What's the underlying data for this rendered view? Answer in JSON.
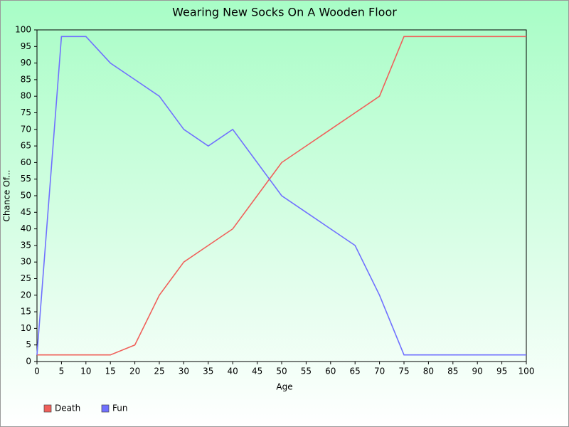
{
  "chart_data": {
    "type": "line",
    "title": "Wearing New Socks On A Wooden Floor",
    "xlabel": "Age",
    "ylabel": "Chance Of...",
    "x": [
      0,
      5,
      10,
      15,
      20,
      25,
      30,
      35,
      40,
      45,
      50,
      55,
      60,
      65,
      70,
      75,
      80,
      85,
      90,
      95,
      100
    ],
    "series": [
      {
        "name": "Death",
        "color": "#f0605a",
        "values": [
          2,
          2,
          2,
          2,
          5,
          20,
          30,
          35,
          40,
          50,
          60,
          65,
          70,
          75,
          80,
          98,
          98,
          98,
          98,
          98,
          98
        ]
      },
      {
        "name": "Fun",
        "color": "#7070ff",
        "values": [
          2,
          98,
          98,
          90,
          85,
          80,
          70,
          65,
          70,
          60,
          50,
          45,
          40,
          35,
          20,
          2,
          2,
          2,
          2,
          2,
          2
        ]
      }
    ],
    "xlim": [
      0,
      100
    ],
    "xticks": [
      0,
      5,
      10,
      15,
      20,
      25,
      30,
      35,
      40,
      45,
      50,
      55,
      60,
      65,
      70,
      75,
      80,
      85,
      90,
      95,
      100
    ],
    "ylim": [
      0,
      100
    ],
    "yticks": [
      0,
      5,
      10,
      15,
      20,
      25,
      30,
      35,
      40,
      45,
      50,
      55,
      60,
      65,
      70,
      75,
      80,
      85,
      90,
      95,
      100
    ],
    "grid": false,
    "legend": "bottom-left"
  }
}
